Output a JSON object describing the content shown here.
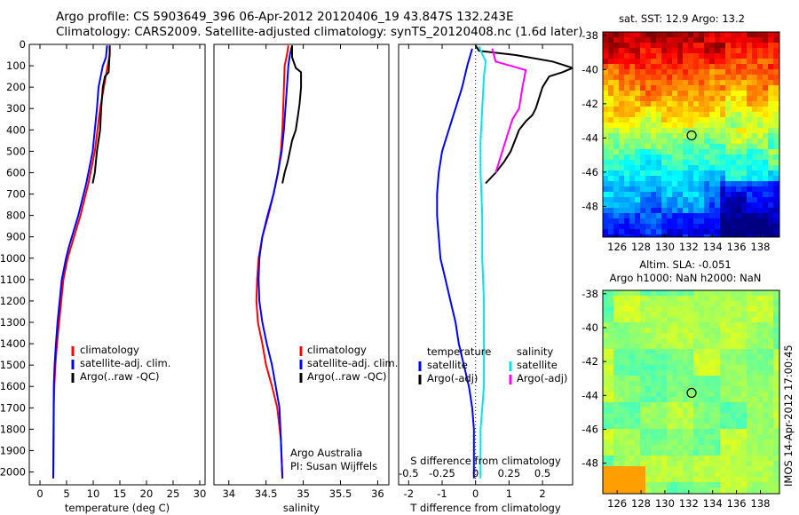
{
  "header": {
    "line1": "Argo profile: CS 5903649_396 06-Apr-2012 20120406_19 43.847S 132.243E",
    "line2": "Climatology: CARS2009. Satellite-adjusted climatology: synTS_20120408.nc (1.6d later)"
  },
  "side_text": "IMOS 14-Apr-2012 17:00:45",
  "chart_data": [
    {
      "id": "temp",
      "type": "line",
      "xlabel": "temperature (deg C)",
      "xlim": [
        -2,
        31
      ],
      "xticks": [
        0,
        5,
        10,
        15,
        20,
        25,
        30
      ],
      "ylim": [
        0,
        2060
      ],
      "yticks": [
        0,
        100,
        200,
        300,
        400,
        500,
        600,
        700,
        800,
        900,
        1000,
        1100,
        1200,
        1300,
        1400,
        1500,
        1600,
        1700,
        1800,
        1900,
        2000
      ],
      "legend": [
        "climatology",
        "satellite-adj. clim.",
        "Argo(..raw -QC)"
      ],
      "series": [
        {
          "name": "climatology",
          "color": "#ff0000",
          "x": [
            13.1,
            13.1,
            12.7,
            12.0,
            11.3,
            10.8,
            10.3,
            9.9,
            9.5,
            9.1,
            8.6,
            8.1,
            7.6,
            7.0,
            6.4,
            5.8,
            5.2,
            4.8,
            4.4,
            4.0,
            3.6,
            3.2,
            2.9,
            2.7,
            2.6,
            2.55,
            2.5
          ],
          "y": [
            5,
            50,
            100,
            200,
            300,
            400,
            500,
            550,
            600,
            650,
            700,
            750,
            800,
            850,
            900,
            950,
            1000,
            1050,
            1100,
            1200,
            1300,
            1400,
            1500,
            1600,
            1700,
            1900,
            2030
          ]
        },
        {
          "name": "satellite-adj. clim.",
          "color": "#0000ff",
          "x": [
            12.6,
            12.4,
            11.8,
            11.0,
            10.7,
            10.3,
            9.9,
            9.5,
            9.1,
            8.7,
            8.2,
            7.7,
            7.2,
            6.6,
            6.0,
            5.4,
            4.9,
            4.5,
            4.1,
            3.7,
            3.3,
            3.0,
            2.75,
            2.6,
            2.55,
            2.5
          ],
          "y": [
            5,
            60,
            100,
            200,
            300,
            400,
            500,
            550,
            600,
            650,
            700,
            750,
            800,
            850,
            900,
            950,
            1000,
            1050,
            1100,
            1200,
            1300,
            1400,
            1500,
            1600,
            1800,
            2030
          ]
        },
        {
          "name": "Argo(..raw -QC)",
          "color": "#000000",
          "x": [
            13.1,
            13.1,
            13.0,
            12.9,
            12.2,
            11.8,
            11.5,
            11.3,
            11.0,
            10.7,
            10.5,
            10.3,
            9.9
          ],
          "y": [
            5,
            40,
            80,
            130,
            150,
            200,
            300,
            400,
            450,
            500,
            550,
            600,
            650
          ]
        }
      ]
    },
    {
      "id": "sal",
      "type": "line",
      "xlabel": "salinity",
      "xlim": [
        33.8,
        36.15
      ],
      "xticks": [
        34,
        34.5,
        35,
        35.5,
        36
      ],
      "xticklabels": [
        "34",
        "34.5",
        "35",
        "35.5",
        "36"
      ],
      "ylim": [
        0,
        2060
      ],
      "legend": [
        "climatology",
        "satellite-adj. clim.",
        "Argo(..raw -QC)"
      ],
      "annotation": [
        "Argo Australia",
        "PI: Susan Wijffels"
      ],
      "series": [
        {
          "name": "climatology",
          "color": "#ff0000",
          "x": [
            34.8,
            34.78,
            34.75,
            34.74,
            34.73,
            34.72,
            34.7,
            34.66,
            34.6,
            34.53,
            34.45,
            34.4,
            34.38,
            34.37,
            34.39,
            34.45,
            34.5,
            34.58,
            34.65,
            34.7,
            34.72
          ],
          "y": [
            5,
            50,
            100,
            200,
            300,
            400,
            500,
            600,
            700,
            800,
            900,
            1000,
            1100,
            1200,
            1300,
            1400,
            1500,
            1600,
            1700,
            1850,
            2030
          ]
        },
        {
          "name": "satellite-adj. clim.",
          "color": "#0000ff",
          "x": [
            34.85,
            34.82,
            34.8,
            34.78,
            34.76,
            34.74,
            34.71,
            34.66,
            34.6,
            34.52,
            34.45,
            34.41,
            34.4,
            34.41,
            34.45,
            34.51,
            34.58,
            34.63,
            34.68,
            34.7,
            34.72
          ],
          "y": [
            5,
            50,
            100,
            200,
            300,
            400,
            500,
            600,
            700,
            800,
            900,
            1000,
            1100,
            1200,
            1300,
            1400,
            1500,
            1600,
            1700,
            1850,
            2030
          ]
        },
        {
          "name": "Argo(..raw -QC)",
          "color": "#000000",
          "x": [
            34.85,
            34.85,
            34.9,
            34.97,
            34.97,
            34.95,
            34.93,
            34.9,
            34.85,
            34.82,
            34.79,
            34.75,
            34.72
          ],
          "y": [
            5,
            60,
            110,
            130,
            200,
            280,
            330,
            400,
            450,
            500,
            550,
            600,
            650
          ]
        }
      ]
    },
    {
      "id": "diff",
      "type": "line",
      "xlabel": "T difference from climatology",
      "x2label": "S difference from climatology",
      "xlim": [
        -2.3,
        2.9
      ],
      "xticks": [
        -2,
        -1,
        0,
        1,
        2
      ],
      "x2ticks": [
        -0.5,
        -0.25,
        0,
        0.25,
        0.5
      ],
      "x2ticklabels": [
        "-0.5",
        "-0.25",
        "0",
        "0.25",
        "0.5"
      ],
      "ylim": [
        0,
        2060
      ],
      "legend_headers": [
        "temperature",
        "salinity"
      ],
      "legend_left": [
        "satellite",
        "Argo(-adj)"
      ],
      "legend_right": [
        "satellite",
        "Argo(-adj)"
      ],
      "series": [
        {
          "name": "temperature satellite",
          "color": "#0000ff",
          "x": [
            -0.1,
            -0.25,
            -0.4,
            -0.6,
            -0.8,
            -1.0,
            -1.1,
            -1.15,
            -1.15,
            -1.1,
            -1.05,
            -0.9,
            -0.75,
            -0.6,
            -0.5,
            -0.35,
            -0.2,
            -0.1,
            -0.05,
            -0.05
          ],
          "y": [
            20,
            100,
            200,
            300,
            400,
            500,
            600,
            700,
            800,
            900,
            1000,
            1100,
            1200,
            1300,
            1400,
            1500,
            1600,
            1700,
            1800,
            2030
          ]
        },
        {
          "name": "temperature Argo(-adj)",
          "color": "#000000",
          "x": [
            0.0,
            0.1,
            1.2,
            2.3,
            2.9,
            2.6,
            2.2,
            2.0,
            1.9,
            1.8,
            1.7,
            1.5,
            1.3,
            1.05,
            0.85,
            0.6,
            0.3
          ],
          "y": [
            5,
            30,
            50,
            80,
            110,
            130,
            150,
            200,
            250,
            300,
            330,
            360,
            400,
            500,
            550,
            600,
            650
          ]
        },
        {
          "name": "salinity satellite",
          "color": "#00e5ee",
          "x": [
            0.1,
            0.3,
            0.25,
            0.2,
            0.15,
            0.15,
            0.2,
            0.2,
            0.25,
            0.25,
            0.25,
            0.25,
            0.2,
            0.15,
            0.15,
            0.15
          ],
          "y": [
            10,
            80,
            150,
            300,
            450,
            600,
            800,
            1000,
            1200,
            1400,
            1500,
            1600,
            1700,
            1800,
            1900,
            2030
          ]
        },
        {
          "name": "salinity Argo(-adj)",
          "color": "#ff00ff",
          "x": [
            0.5,
            0.6,
            1.5,
            1.4,
            1.3,
            1.1,
            1.0,
            0.9,
            0.8,
            0.7,
            0.6
          ],
          "y": [
            20,
            80,
            120,
            200,
            300,
            350,
            400,
            450,
            500,
            550,
            600
          ]
        }
      ]
    },
    {
      "id": "sst",
      "type": "heatmap",
      "title": "sat. SST: 12.9 Argo: 13.2",
      "xlim": [
        124.8,
        139.6
      ],
      "ylim": [
        -49.8,
        -37.8
      ],
      "xticks": [
        126,
        128,
        130,
        132,
        134,
        136,
        138
      ],
      "yticks": [
        -38,
        -40,
        -42,
        -44,
        -46,
        -48
      ],
      "marker": [
        132.24,
        -43.85
      ]
    },
    {
      "id": "sla",
      "type": "heatmap",
      "title": "Altim. SLA: -0.051",
      "subtitle": "Argo h1000: NaN h2000: NaN",
      "xlim": [
        124.8,
        139.6
      ],
      "ylim": [
        -49.8,
        -37.8
      ],
      "xticks": [
        126,
        128,
        130,
        132,
        134,
        136,
        138
      ],
      "yticks": [
        -38,
        -40,
        -42,
        -44,
        -46,
        -48
      ],
      "marker": [
        132.24,
        -43.85
      ]
    }
  ]
}
